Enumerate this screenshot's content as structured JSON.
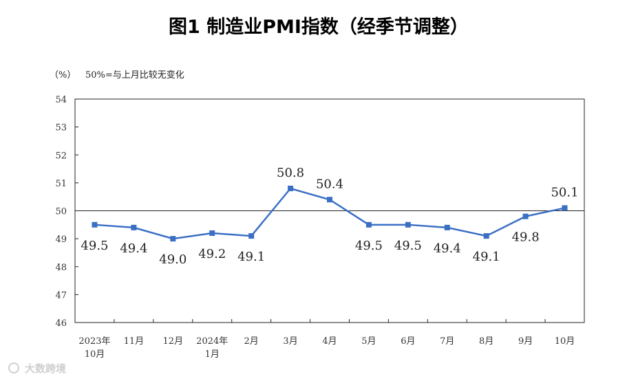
{
  "chart_data": {
    "type": "line",
    "title": "图1  制造业PMI指数（经季节调整）",
    "ylabel": "（%）",
    "note": "50%=与上月比较无变化",
    "categories": [
      [
        "2023年",
        "10月"
      ],
      [
        "11月"
      ],
      [
        "12月"
      ],
      [
        "2024年",
        "1月"
      ],
      [
        "2月"
      ],
      [
        "3月"
      ],
      [
        "4月"
      ],
      [
        "5月"
      ],
      [
        "6月"
      ],
      [
        "7月"
      ],
      [
        "8月"
      ],
      [
        "9月"
      ],
      [
        "10月"
      ]
    ],
    "values": [
      49.5,
      49.4,
      49.0,
      49.2,
      49.1,
      50.8,
      50.4,
      49.5,
      49.5,
      49.4,
      49.1,
      49.8,
      50.1
    ],
    "data_labels": [
      "49.5",
      "49.4",
      "49.0",
      "49.2",
      "49.1",
      "50.8",
      "50.4",
      "49.5",
      "49.5",
      "49.4",
      "49.1",
      "49.8",
      "50.1"
    ],
    "ylim": [
      46,
      54
    ],
    "yticks": [
      "46",
      "47",
      "48",
      "49",
      "50",
      "51",
      "52",
      "53",
      "54"
    ],
    "reference_line": 50,
    "grid": false,
    "series_color": "#3a6fc4"
  },
  "watermark": "大数跨境"
}
